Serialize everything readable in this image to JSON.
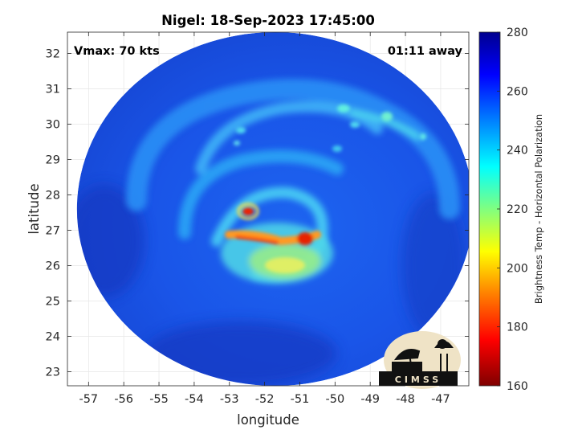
{
  "figure": {
    "title": "Nigel: 18-Sep-2023 17:45:00",
    "vmax_text": "Vmax: 70 kts",
    "time_text": "01:11 away",
    "xlabel": "longitude",
    "ylabel": "latitude",
    "logo_text": "CIMSS"
  },
  "map": {
    "xlim": [
      -57.6,
      -46.2
    ],
    "ylim": [
      22.6,
      32.6
    ],
    "x_ticks": [
      -57,
      -56,
      -55,
      -54,
      -53,
      -52,
      -51,
      -50,
      -49,
      -48,
      -47
    ],
    "y_ticks": [
      23,
      24,
      25,
      26,
      27,
      28,
      29,
      30,
      31,
      32
    ],
    "grid": true,
    "swath_center": [
      -51.7,
      27.6
    ],
    "swath_radius_deg": [
      5.63,
      5.0
    ]
  },
  "colorbar": {
    "label": "Brightness Temp - Horizontal Polarization",
    "range": [
      160,
      280
    ],
    "ticks": [
      160,
      180,
      200,
      220,
      240,
      260,
      280
    ],
    "colormap": [
      "#7f0000",
      "#ff0000",
      "#ff8000",
      "#ffff00",
      "#80ff80",
      "#00ffff",
      "#0080ff",
      "#0000ff",
      "#00008f"
    ]
  },
  "features": [
    {
      "name": "eyewall-hot-band",
      "lon": -51.9,
      "lat": 26.6,
      "tb": 190
    },
    {
      "name": "hot-spot-east",
      "lon": -51.0,
      "lat": 26.8,
      "tb": 175
    },
    {
      "name": "hot-spot-north",
      "lon": -52.6,
      "lat": 27.5,
      "tb": 180
    },
    {
      "name": "inner-core-warm",
      "lon": -51.5,
      "lat": 26.2,
      "tb": 210
    },
    {
      "name": "rainband-north",
      "lon": -51.3,
      "lat": 29.6,
      "tb": 235
    },
    {
      "name": "rainband-northeast",
      "lon": -49.8,
      "lat": 30.3,
      "tb": 238
    }
  ]
}
